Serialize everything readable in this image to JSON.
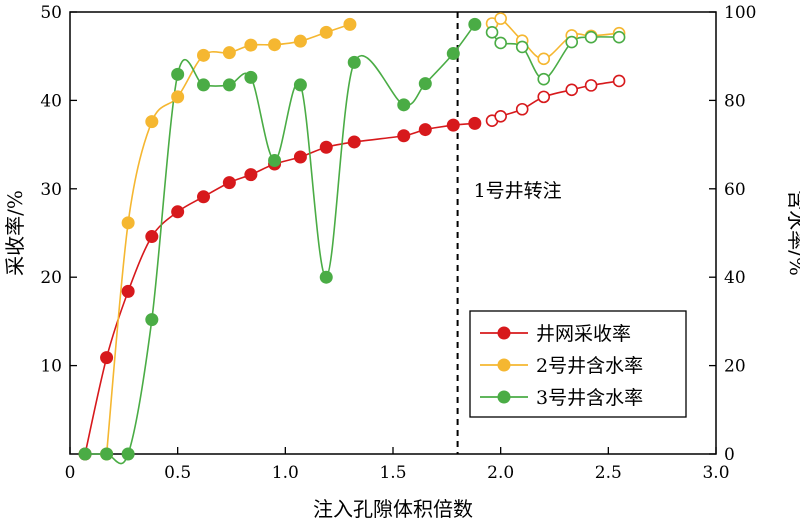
{
  "chart_data": {
    "type": "line",
    "xlabel": "注入孔隙体积倍数",
    "ylabel_left": "采收率/%",
    "ylabel_right": "含水率/%",
    "xlim": [
      0,
      3.0
    ],
    "ylim_left": [
      0,
      50
    ],
    "ylim_right": [
      0,
      100
    ],
    "x_ticks": [
      "0",
      "0.5",
      "1.0",
      "1.5",
      "2.0",
      "2.5",
      "3.0"
    ],
    "y_left_ticks": [
      "10",
      "20",
      "30",
      "40",
      "50"
    ],
    "y_right_ticks": [
      "0",
      "20",
      "40",
      "60",
      "80",
      "100"
    ],
    "annotation": {
      "text": "1号井转注",
      "x": 1.8,
      "line_style": "dashed"
    },
    "legend": {
      "placement": "bottom-right"
    },
    "series": [
      {
        "name": "井网采收率",
        "axis": "left",
        "color": "#d7191c",
        "segments": [
          {
            "hollow": false,
            "points": [
              [
                0.07,
                0
              ],
              [
                0.17,
                10.9
              ],
              [
                0.27,
                18.4
              ],
              [
                0.38,
                24.6
              ],
              [
                0.5,
                27.4
              ],
              [
                0.62,
                29.1
              ],
              [
                0.74,
                30.7
              ],
              [
                0.84,
                31.6
              ],
              [
                0.95,
                32.8
              ],
              [
                1.07,
                33.6
              ],
              [
                1.19,
                34.7
              ],
              [
                1.32,
                35.3
              ],
              [
                1.55,
                36
              ],
              [
                1.65,
                36.7
              ],
              [
                1.78,
                37.2
              ],
              [
                1.88,
                37.4
              ]
            ]
          },
          {
            "hollow": true,
            "points": [
              [
                1.96,
                37.7
              ],
              [
                2.0,
                38.2
              ],
              [
                2.1,
                39.0
              ],
              [
                2.2,
                40.4
              ],
              [
                2.33,
                41.2
              ],
              [
                2.42,
                41.7
              ],
              [
                2.55,
                42.2
              ]
            ]
          }
        ]
      },
      {
        "name": "2号井含水率",
        "axis": "right",
        "color": "#f5b731",
        "segments": [
          {
            "hollow": false,
            "points": [
              [
                0.17,
                0
              ],
              [
                0.27,
                52.3
              ],
              [
                0.38,
                75.2
              ],
              [
                0.5,
                80.8
              ],
              [
                0.62,
                90.2
              ],
              [
                0.74,
                90.8
              ],
              [
                0.84,
                92.5
              ],
              [
                0.95,
                92.6
              ],
              [
                1.07,
                93.4
              ],
              [
                1.19,
                95.4
              ],
              [
                1.3,
                97.2
              ]
            ]
          },
          {
            "hollow": true,
            "points": [
              [
                1.96,
                97.4
              ],
              [
                2.0,
                98.5
              ],
              [
                2.1,
                93.5
              ],
              [
                2.2,
                89.4
              ],
              [
                2.33,
                94.7
              ],
              [
                2.42,
                94.6
              ],
              [
                2.55,
                95.2
              ]
            ]
          }
        ]
      },
      {
        "name": "3号井含水率",
        "axis": "right",
        "color": "#4aac45",
        "segments": [
          {
            "hollow": false,
            "points": [
              [
                0.07,
                0
              ],
              [
                0.17,
                0
              ],
              [
                0.27,
                0
              ],
              [
                0.38,
                30.4
              ],
              [
                0.5,
                85.9
              ],
              [
                0.62,
                83.5
              ],
              [
                0.74,
                83.5
              ],
              [
                0.84,
                85.2
              ],
              [
                0.95,
                66.4
              ],
              [
                1.07,
                83.5
              ],
              [
                1.19,
                40.0
              ],
              [
                1.32,
                88.6
              ],
              [
                1.55,
                79.0
              ],
              [
                1.65,
                83.8
              ],
              [
                1.78,
                90.6
              ],
              [
                1.88,
                97.2
              ]
            ]
          },
          {
            "hollow": true,
            "points": [
              [
                1.96,
                95.4
              ],
              [
                2.0,
                93.0
              ],
              [
                2.1,
                92.1
              ],
              [
                2.2,
                84.8
              ],
              [
                2.33,
                93.2
              ],
              [
                2.42,
                94.3
              ],
              [
                2.55,
                94.3
              ]
            ]
          }
        ]
      }
    ]
  }
}
